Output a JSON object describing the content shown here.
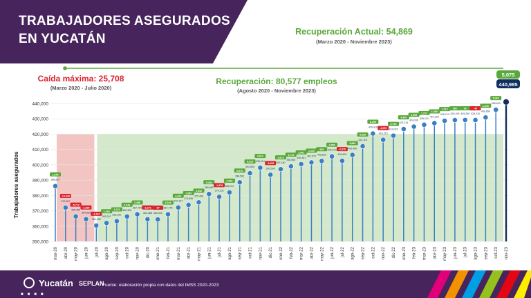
{
  "header": {
    "title_line1": "TRABAJADORES ASEGURADOS",
    "title_line2": "EN YUCATÁN"
  },
  "annotations": {
    "recuperacion_actual": "Recuperación Actual: 54,869",
    "recuperacion_actual_period": "(Marzo 2020 - Noviembre 2023)",
    "caida_maxima": "Caída máxima: 25,708",
    "caida_maxima_period": "(Marzo 2020 - Julio 2020)",
    "recuperacion": "Recuperación: 80,577 empleos",
    "recuperacion_period": "(Agosto 2020 - Noviembre 2023)",
    "last_change": "5,075",
    "last_value": "440,985"
  },
  "footer": {
    "logo_main": "Yucatán",
    "logo_sub": "SEPLAN",
    "source": "Fuente: elaboración propia con datos del IMSS 2020-2023"
  },
  "colors": {
    "header_bg": "#47245c",
    "line_blue": "#3a7fc4",
    "green": "#5aa83b",
    "red": "#d9232d",
    "last_navy": "#102e5e"
  },
  "chart_data": {
    "type": "line",
    "ylabel": "Trabajadores asegurados",
    "ylim": [
      350000,
      440000
    ],
    "yticks": [
      "440,000",
      "430,000",
      "420,000",
      "410,000",
      "400,000",
      "390,000",
      "380,000",
      "370,000",
      "360,000",
      "350,000"
    ],
    "ytick_values": [
      440000,
      430000,
      420000,
      410000,
      400000,
      390000,
      380000,
      370000,
      360000,
      350000
    ],
    "categories": [
      "mar-20",
      "abr-20",
      "may-20",
      "jun-20",
      "jul-20",
      "ago-20",
      "sep-20",
      "oct-20",
      "nov-20",
      "dic-20",
      "ene-21",
      "feb-21",
      "mar-21",
      "abr-21",
      "may-21",
      "jun-21",
      "jul-21",
      "ago-21",
      "sep-21",
      "oct-21",
      "nov-21",
      "dic-21",
      "ene-22",
      "feb-22",
      "mar-22",
      "abr-22",
      "may-22",
      "jun-22",
      "jul-22",
      "ago-22",
      "sep-22",
      "oct-22",
      "nov-22",
      "dic-22",
      "ene-23",
      "feb-23",
      "mar-23",
      "abr-23",
      "may-23",
      "jun-23",
      "jul-23",
      "ago-23",
      "sep-23",
      "oct-23",
      "nov-23"
    ],
    "values": [
      386116,
      372067,
      366355,
      364530,
      360408,
      362047,
      363262,
      366306,
      367764,
      364488,
      364401,
      367745,
      372167,
      373856,
      375498,
      380980,
      379102,
      382011,
      388581,
      394500,
      398114,
      393506,
      397180,
      398950,
      400451,
      401570,
      402520,
      405470,
      402600,
      406480,
      412115,
      420410,
      416315,
      419015,
      423315,
      424910,
      426131,
      427200,
      428710,
      429190,
      429250,
      429210,
      430850,
      435910,
      440985
    ],
    "changes": [
      "1,345",
      "-14,049",
      "-5,712",
      "-1,825",
      "-4,122",
      "1,639",
      "1,215",
      "3,044",
      "1,458",
      "-3,276",
      "-87",
      "3,344",
      "4,422",
      "1,689",
      "1,642",
      "5,482",
      "-1,878",
      "2,909",
      "6,570",
      "5,919",
      "3,614",
      "-4,608",
      "3,674",
      "1,770",
      "1,501",
      "1,119",
      "950",
      "2,950",
      "-2,870",
      "3,880",
      "5,635",
      "8,295",
      "-4,095",
      "2,700",
      "4,300",
      "1,595",
      "1,221",
      "1,069",
      "1,510",
      "480",
      "60",
      "-40",
      "1,640",
      "5,060",
      "5,075"
    ],
    "value_labels": [
      "386,116",
      "372,067",
      "366,355",
      "364,530",
      "360,408",
      "362,047",
      "363,262",
      "366,306",
      "367,764",
      "364,488",
      "364,401",
      "367,745",
      "372,167",
      "373,856",
      "375,498",
      "380,980",
      "379,102",
      "382,011",
      "388,581",
      "394,500",
      "398,114",
      "393,506",
      "397,180",
      "398,950",
      "400,451",
      "401,570",
      "402,520",
      "405,470",
      "402,600",
      "406,480",
      "412,115",
      "420,410",
      "416,315",
      "419,015",
      "423,315",
      "424,910",
      "426,131",
      "427,200",
      "428,710",
      "429,190",
      "429,250",
      "429,210",
      "430,850",
      "435,910",
      "440,985"
    ]
  }
}
